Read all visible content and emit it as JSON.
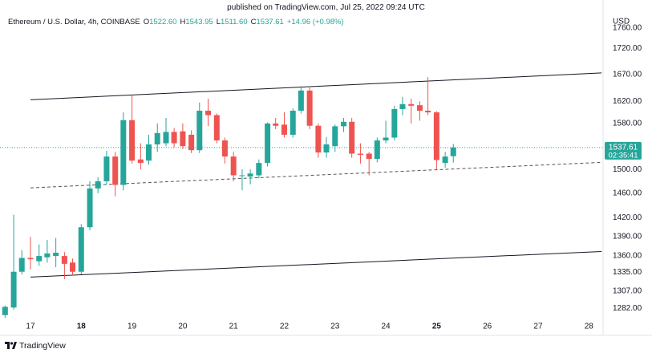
{
  "header": {
    "published": "published on TradingView.com, Jul 25, 2022 09:24 UTC"
  },
  "chart_data": {
    "type": "candlestick",
    "legend": {
      "symbol": "Ethereum / U.S. Dollar, 4h, COINBASE",
      "items": [
        {
          "key": "O",
          "value": "1522.60"
        },
        {
          "key": "H",
          "value": "1543.95"
        },
        {
          "key": "L",
          "value": "1511.60"
        },
        {
          "key": "C",
          "value": "1537.61"
        }
      ],
      "change": "+14.96 (+0.98%)"
    },
    "currency": "USD",
    "countdown": "02:35:41",
    "x": [
      16.5,
      16.67,
      16.83,
      17,
      17.17,
      17.33,
      17.5,
      17.67,
      17.83,
      18,
      18.17,
      18.33,
      18.5,
      18.67,
      18.83,
      19,
      19.17,
      19.33,
      19.5,
      19.67,
      19.83,
      20,
      20.17,
      20.33,
      20.5,
      20.67,
      20.83,
      21,
      21.17,
      21.33,
      21.5,
      21.67,
      21.83,
      22,
      22.17,
      22.33,
      22.5,
      22.67,
      22.83,
      23,
      23.17,
      23.33,
      23.5,
      23.67,
      23.83,
      24,
      24.17,
      24.33,
      24.5,
      24.67,
      24.83,
      25,
      25.17,
      25.33
    ],
    "open": [
      1272,
      1283,
      1336,
      1357,
      1352,
      1358,
      1360,
      1360,
      1350,
      1336,
      1405,
      1468,
      1480,
      1522,
      1474,
      1586,
      1517,
      1515,
      1543,
      1545,
      1565,
      1566,
      1560,
      1533,
      1603,
      1595,
      1550,
      1522,
      1490,
      1488,
      1490,
      1511,
      1580,
      1578,
      1560,
      1603,
      1640,
      1576,
      1529,
      1540,
      1575,
      1583,
      1527,
      1527,
      1518,
      1550,
      1555,
      1606,
      1615,
      1613,
      1603,
      1600,
      1511,
      1522.6
    ],
    "high": [
      1286,
      1425,
      1369,
      1390,
      1378,
      1385,
      1388,
      1366,
      1356,
      1410,
      1480,
      1487,
      1532,
      1530,
      1600,
      1632,
      1545,
      1560,
      1580,
      1590,
      1572,
      1580,
      1568,
      1618,
      1625,
      1598,
      1555,
      1530,
      1500,
      1500,
      1517,
      1582,
      1590,
      1600,
      1607,
      1648,
      1648,
      1580,
      1556,
      1578,
      1590,
      1590,
      1545,
      1530,
      1555,
      1585,
      1612,
      1628,
      1625,
      1620,
      1665,
      1602,
      1530,
      1543.95
    ],
    "low": [
      1268,
      1280,
      1332,
      1340,
      1345,
      1350,
      1343,
      1325,
      1330,
      1332,
      1400,
      1460,
      1475,
      1455,
      1465,
      1510,
      1500,
      1508,
      1530,
      1540,
      1538,
      1535,
      1528,
      1528,
      1575,
      1545,
      1510,
      1480,
      1465,
      1475,
      1485,
      1505,
      1570,
      1555,
      1555,
      1598,
      1570,
      1520,
      1520,
      1530,
      1565,
      1520,
      1510,
      1490,
      1512,
      1545,
      1550,
      1595,
      1580,
      1585,
      1595,
      1500,
      1503,
      1511.6
    ],
    "close": [
      1284,
      1336,
      1357,
      1355,
      1360,
      1364,
      1365,
      1348,
      1336,
      1405,
      1468,
      1480,
      1522,
      1474,
      1586,
      1515,
      1511,
      1543,
      1563,
      1565,
      1545,
      1540,
      1533,
      1603,
      1595,
      1550,
      1522,
      1490,
      1490,
      1493,
      1511,
      1580,
      1576,
      1560,
      1603,
      1640,
      1576,
      1529,
      1543,
      1575,
      1583,
      1527,
      1525,
      1518,
      1550,
      1555,
      1606,
      1615,
      1612,
      1603,
      1600,
      1516,
      1522,
      1537.61
    ],
    "up_color": "#26a69a",
    "down_color": "#ef5350",
    "xlim": [
      16.4,
      28.28
    ],
    "xticks": [
      17,
      18,
      19,
      20,
      21,
      22,
      23,
      24,
      25,
      26,
      27,
      28
    ],
    "ylim": [
      1266,
      1781
    ],
    "log_scale": true,
    "grid": false,
    "yticks": [
      {
        "value": 1760,
        "label": "1760.00"
      },
      {
        "value": 1720,
        "label": "1720.00"
      },
      {
        "value": 1670,
        "label": "1670.00"
      },
      {
        "value": 1620,
        "label": "1620.00"
      },
      {
        "value": 1580,
        "label": "1580.00"
      },
      {
        "value": 1500,
        "label": "1500.00"
      },
      {
        "value": 1460,
        "label": "1460.00"
      },
      {
        "value": 1420,
        "label": "1420.00"
      },
      {
        "value": 1390,
        "label": "1390.00"
      },
      {
        "value": 1360,
        "label": "1360.00"
      },
      {
        "value": 1335,
        "label": "1335.00"
      },
      {
        "value": 1307,
        "label": "1307.00"
      },
      {
        "value": 1282,
        "label": "1282.00"
      }
    ],
    "trendlines": [
      {
        "x": [
          17,
          28.25
        ],
        "y": [
          1623,
          1673
        ],
        "style": "solid",
        "color": "#131722"
      },
      {
        "x": [
          17,
          28.25
        ],
        "y": [
          1469,
          1512
        ],
        "style": "dashed",
        "color": "#555555"
      },
      {
        "x": [
          17,
          28.25
        ],
        "y": [
          1328,
          1367
        ],
        "style": "solid",
        "color": "#131722"
      }
    ]
  },
  "footer": {
    "brand": "TradingView"
  }
}
